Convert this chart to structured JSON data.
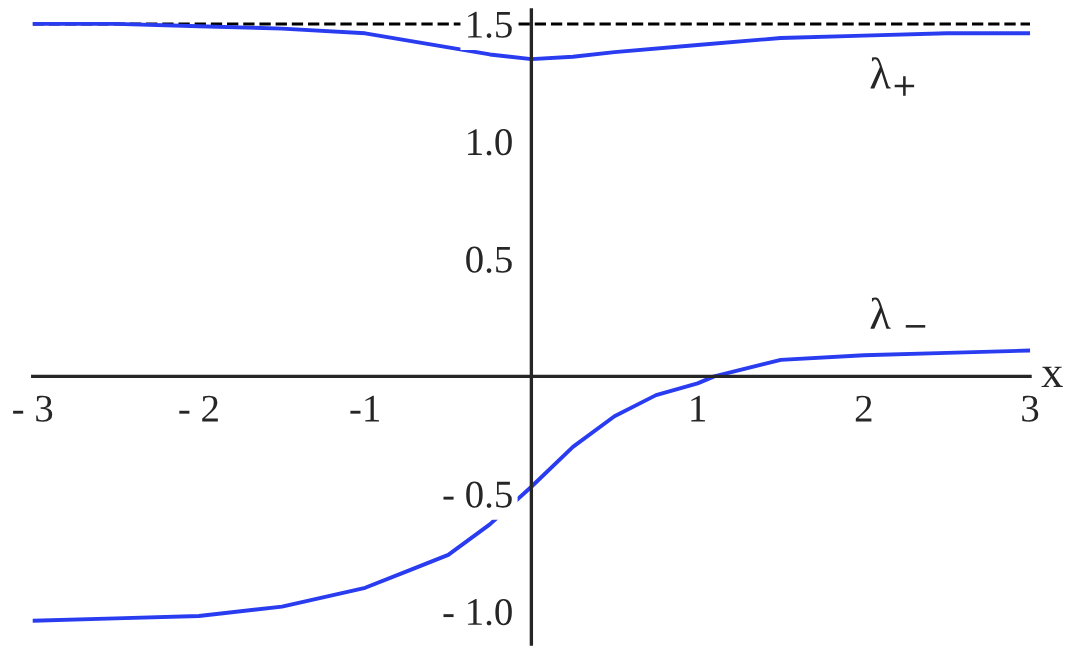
{
  "chart_data": {
    "type": "line",
    "xlabel": "x",
    "series": [
      {
        "name": "λ$_{+}$",
        "color": "#2a3cf0",
        "x": [
          -3,
          -2.5,
          -2,
          -1.5,
          -1,
          -0.5,
          -0.25,
          0,
          0.25,
          0.5,
          1,
          1.5,
          2,
          2.5,
          3
        ],
        "values": [
          1.5,
          1.5,
          1.49,
          1.48,
          1.46,
          1.4,
          1.37,
          1.35,
          1.36,
          1.38,
          1.41,
          1.44,
          1.45,
          1.46,
          1.46
        ]
      },
      {
        "name": "λ $_{−}$",
        "color": "#2a3cf0",
        "x": [
          -3,
          -2.5,
          -2,
          -1.5,
          -1,
          -0.75,
          -0.5,
          -0.25,
          0,
          0.25,
          0.5,
          0.75,
          1,
          1.1,
          1.5,
          2,
          2.5,
          3
        ],
        "values": [
          -1.04,
          -1.03,
          -1.02,
          -0.98,
          -0.9,
          -0.83,
          -0.76,
          -0.63,
          -0.47,
          -0.3,
          -0.17,
          -0.08,
          -0.03,
          0,
          0.07,
          0.09,
          0.1,
          0.11
        ]
      }
    ],
    "xlim": [
      -3,
      3
    ],
    "ylim": [
      -1.14,
      1.56
    ],
    "xticks": [
      {
        "value": -3,
        "label": "- 3"
      },
      {
        "value": -2,
        "label": "- 2"
      },
      {
        "value": -1,
        "label": "-1"
      },
      1,
      2,
      3
    ],
    "yticks": [
      {
        "value": -1.0,
        "label": "- 1.0"
      },
      {
        "value": -0.5,
        "label": "- 0.5"
      },
      {
        "value": 0.5,
        "label": "0.5"
      },
      {
        "value": 1.0,
        "label": "1.0"
      },
      {
        "value": 1.5,
        "label": "1.5"
      }
    ],
    "ref_lines": [
      {
        "axis": "y",
        "value": 1.5,
        "color": "#000000",
        "line_style": "dashed"
      }
    ],
    "grid": false,
    "legend": false
  }
}
